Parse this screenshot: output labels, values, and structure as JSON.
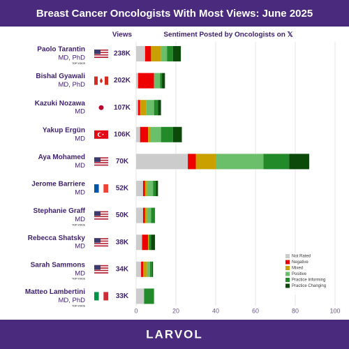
{
  "header": {
    "title": "Breast Cancer Oncologists With Most Views: June 2025"
  },
  "chart_data": {
    "type": "bar",
    "orientation": "horizontal",
    "stacked": true,
    "title": "Sentiment Posted by Oncologists on 𝕏",
    "views_label": "Views",
    "categories": [
      "Paolo Tarantin",
      "Bishal Gyawali",
      "Kazuki Nozawa",
      "Yakup Ergün",
      "Aya Mohamed",
      "Jerome Barriere",
      "Stephanie Graff",
      "Rebecca Shatsky",
      "Sarah Sammons",
      "Matteo Lambertini"
    ],
    "subtitles": [
      "MD, PhD",
      "MD, PhD",
      "MD",
      "MD",
      "MD",
      "MD",
      "MD",
      "MD",
      "MD",
      "MD, PhD"
    ],
    "badges": [
      "TOP VOICE",
      null,
      null,
      null,
      null,
      null,
      "TOP VOICE",
      null,
      "TOP VOICE",
      "TOP VOICE"
    ],
    "views": [
      "238K",
      "202K",
      "107K",
      "106K",
      "70K",
      "52K",
      "50K",
      "38K",
      "34K",
      "33K"
    ],
    "series": [
      {
        "name": "Not Rated",
        "color": "#cccccc",
        "values": [
          4.5,
          1,
          1,
          2,
          26,
          3.5,
          3.5,
          3,
          2.5,
          4
        ]
      },
      {
        "name": "Negative",
        "color": "#ee0000",
        "values": [
          3,
          8,
          1,
          4,
          4,
          1,
          1,
          3,
          1,
          0
        ]
      },
      {
        "name": "Mixed",
        "color": "#c9a000",
        "values": [
          5,
          0,
          3,
          1,
          10,
          1,
          1,
          0.5,
          2,
          0
        ]
      },
      {
        "name": "Positive",
        "color": "#6cbf6a",
        "values": [
          3,
          3,
          4,
          5.5,
          24,
          3,
          2,
          0,
          1.5,
          0
        ]
      },
      {
        "name": "Practice Informing",
        "color": "#238a2a",
        "values": [
          3,
          1,
          2,
          6,
          13,
          1.5,
          2,
          1,
          1,
          5
        ]
      },
      {
        "name": "Practice Changing",
        "color": "#0b4a0b",
        "values": [
          4,
          1.5,
          1.5,
          4.5,
          10,
          1,
          0,
          2,
          0.5,
          0
        ]
      }
    ],
    "xlim": [
      0,
      100
    ],
    "xticks": [
      0,
      20,
      40,
      60,
      80,
      100
    ],
    "grid": true,
    "legend": "lower right"
  },
  "footer": {
    "brand": "LARVOL"
  }
}
